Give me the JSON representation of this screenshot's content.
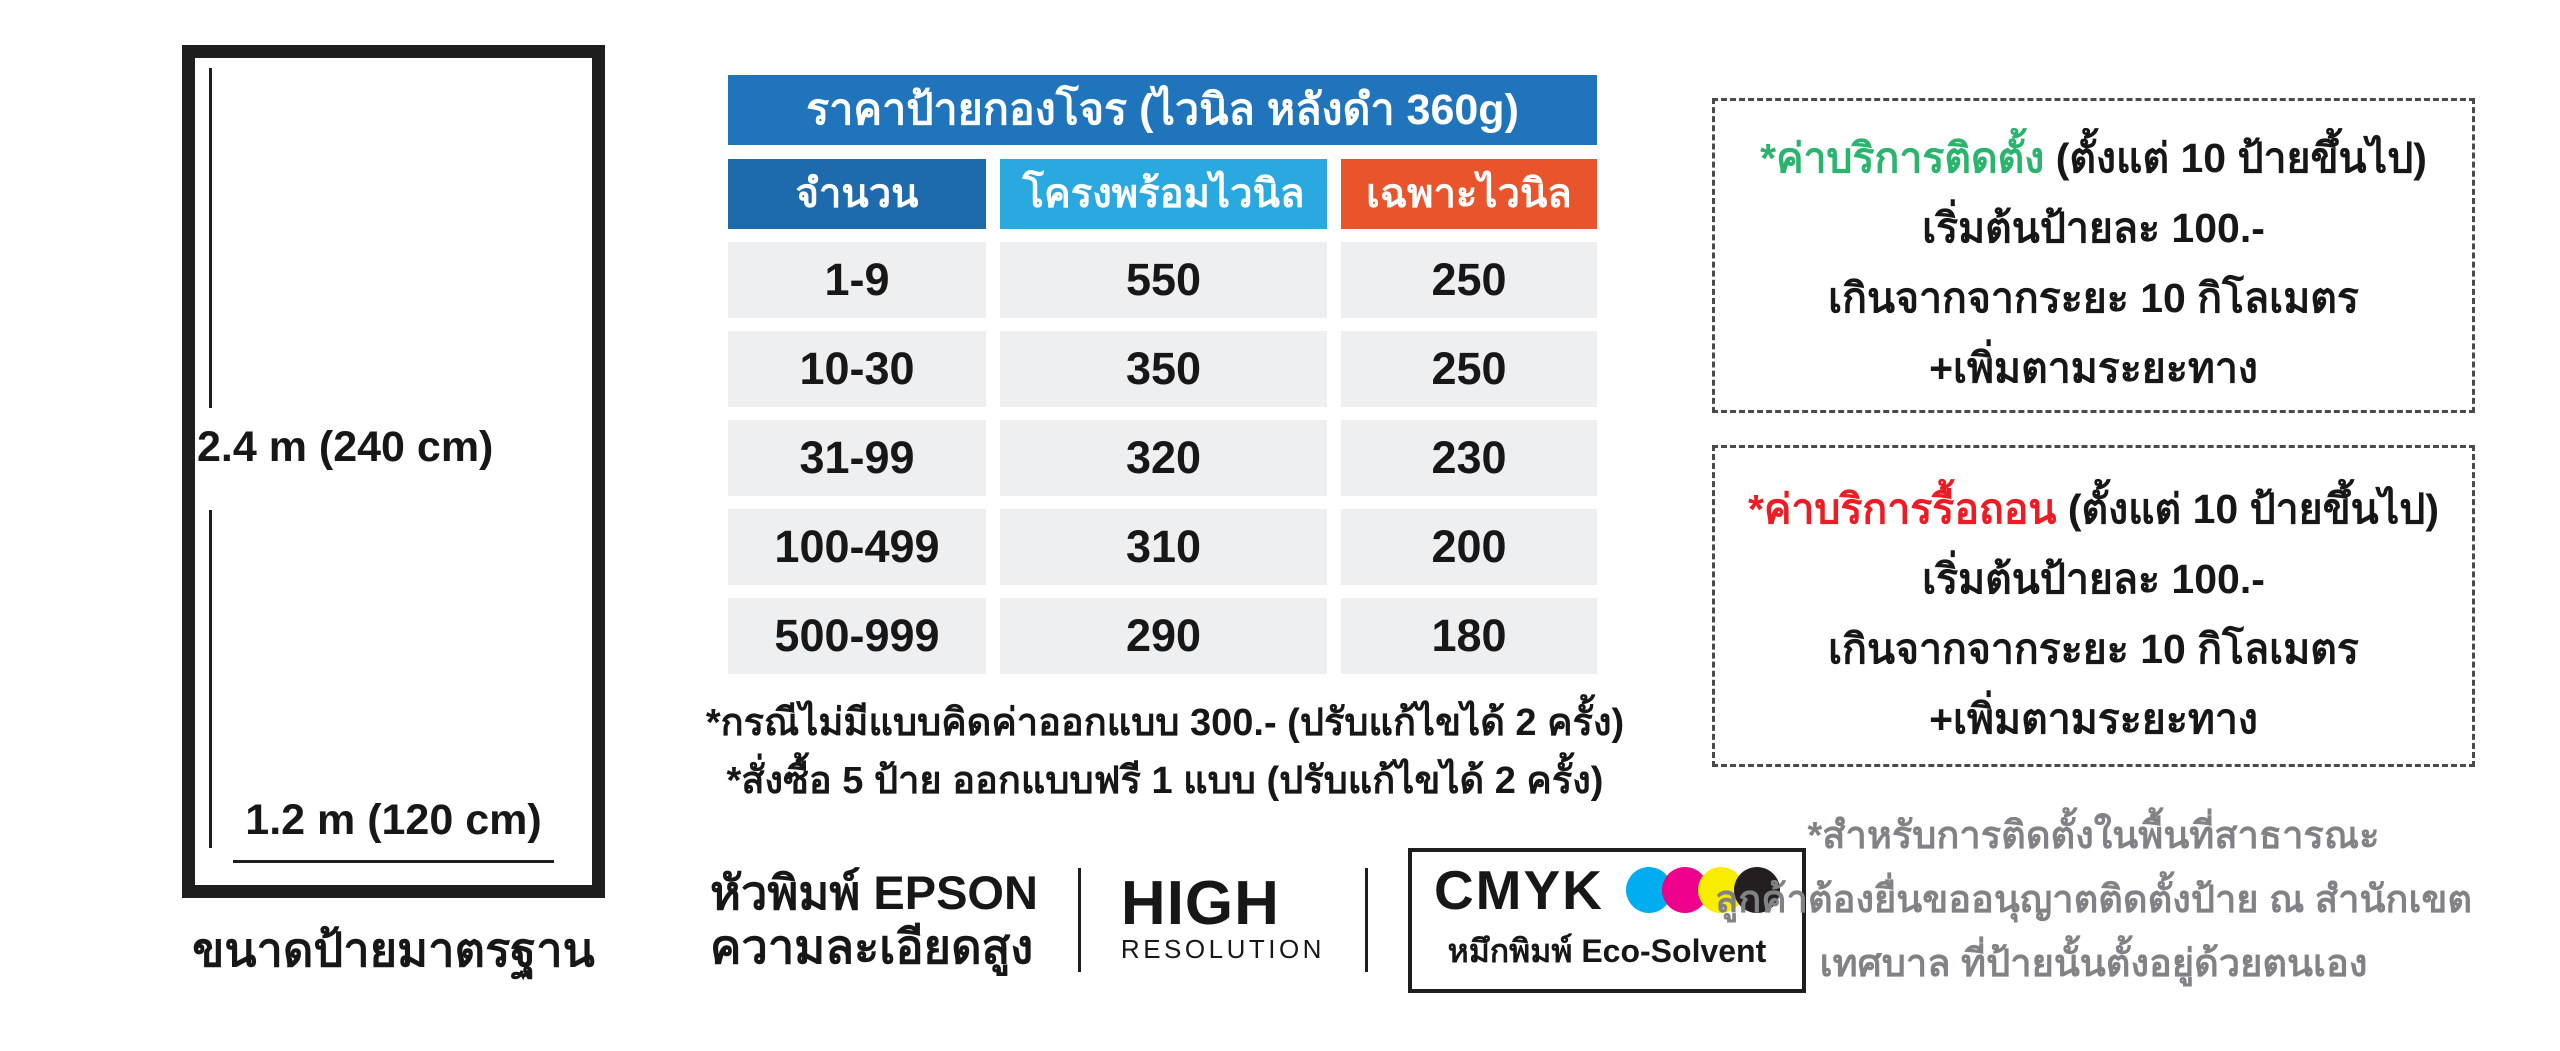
{
  "diagram": {
    "height_label": "2.4 m (240 cm)",
    "width_label": "1.2 m (120 cm)",
    "caption": "ขนาดป้ายมาตรฐาน"
  },
  "price_table": {
    "title": "ราคาป้ายกองโจร (ไวนิล หลังดำ 360g)",
    "columns": [
      "จำนวน",
      "โครงพร้อมไวนิล",
      "เฉพาะไวนิล"
    ],
    "rows": [
      {
        "qty": "1-9",
        "frame_with_vinyl": "550",
        "vinyl_only": "250"
      },
      {
        "qty": "10-30",
        "frame_with_vinyl": "350",
        "vinyl_only": "250"
      },
      {
        "qty": "31-99",
        "frame_with_vinyl": "320",
        "vinyl_only": "230"
      },
      {
        "qty": "100-499",
        "frame_with_vinyl": "310",
        "vinyl_only": "200"
      },
      {
        "qty": "500-999",
        "frame_with_vinyl": "290",
        "vinyl_only": "180"
      }
    ],
    "notes": [
      "*กรณีไม่มีแบบคิดค่าออกแบบ 300.- (ปรับแก้ไขได้ 2 ครั้ง)",
      "*สั่งซื้อ 5 ป้าย ออกแบบฟรี 1 แบบ (ปรับแก้ไขได้ 2 ครั้ง)"
    ]
  },
  "features": {
    "printhead_line1": "หัวพิมพ์ EPSON",
    "printhead_line2": "ความละเอียดสูง",
    "high": "HIGH",
    "resolution": "RESOLUTION",
    "cmyk": "CMYK",
    "ink": "หมึกพิมพ์ Eco-Solvent",
    "dot_colors": [
      "#00AEEF",
      "#EC008C",
      "#F8EC00",
      "#231F20"
    ]
  },
  "install_box": {
    "title": "*ค่าบริการติดตั้ง",
    "title_suffix": " (ตั้งแต่ 10 ป้ายขึ้นไป)",
    "line2": "เริ่มต้นป้ายละ 100.-",
    "line3": "เกินจากจากระยะ 10 กิโลเมตร",
    "line4": "+เพิ่มตามระยะทาง",
    "title_color": "#2BB46E"
  },
  "remove_box": {
    "title": "*ค่าบริการรื้อถอน",
    "title_suffix": " (ตั้งแต่ 10 ป้ายขึ้นไป)",
    "line2": "เริ่มต้นป้ายละ 100.-",
    "line3": "เกินจากจากระยะ 10 กิโลเมตร",
    "line4": "+เพิ่มตามระยะทาง",
    "title_color": "#ED1C24"
  },
  "permit_note": {
    "line1": "*สำหรับการติดตั้งในพื้นที่สาธารณะ",
    "line2": "ลูกค้าต้องยื่นขออนุญาตติดตั้งป้าย ณ สำนักเขต",
    "line3": "เทศบาล ที่ป้ายนั้นตั้งอยู่ด้วยตนเอง",
    "text_color": "#808285"
  },
  "colors": {
    "table_title_bg": "#2074BC",
    "col_qty_bg": "#1D6BAD",
    "col_frame_bg": "#2AA9E0",
    "col_vinyl_bg": "#E8552C",
    "row_bg": "#EEEFF1",
    "outline_black": "#1E1E1E"
  }
}
